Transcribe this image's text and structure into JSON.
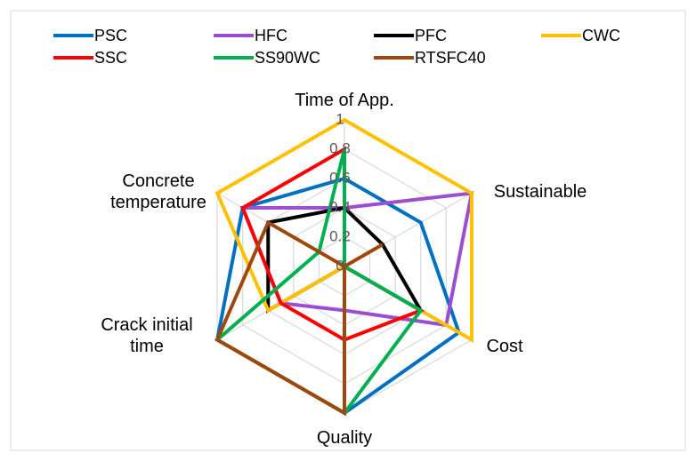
{
  "chart_data": {
    "type": "radar",
    "categories": [
      "Time of App.",
      "Sustainable",
      "Cost",
      "Quality",
      "Crack initial time",
      "Concrete temperature"
    ],
    "series": [
      {
        "name": "PSC",
        "color": "#0070c0",
        "values": [
          0.6,
          0.6,
          0.9,
          1,
          1,
          0.8
        ]
      },
      {
        "name": "HFC",
        "color": "#9b4fd0",
        "values": [
          0.4,
          1,
          0.8,
          0.3,
          0.5,
          0.8
        ]
      },
      {
        "name": "PFC",
        "color": "#000000",
        "values": [
          0.4,
          0.3,
          0.6,
          0,
          0.6,
          0.6
        ]
      },
      {
        "name": "CWC",
        "color": "#ffc000",
        "values": [
          1,
          1,
          1,
          0,
          0.6,
          1
        ]
      },
      {
        "name": "SSC",
        "color": "#ff0000",
        "values": [
          0.8,
          0,
          0.6,
          0.5,
          0.5,
          0.8
        ]
      },
      {
        "name": "SS90WC",
        "color": "#00b050",
        "values": [
          0.8,
          0,
          0.6,
          1,
          1,
          0.2
        ]
      },
      {
        "name": "RTSFC40",
        "color": "#a0480c",
        "values": [
          0,
          0.3,
          0,
          1,
          1,
          0.6
        ]
      }
    ],
    "ylim": [
      0,
      1
    ],
    "yticks": [
      0,
      0.2,
      0.4,
      0.6,
      0.8,
      1
    ],
    "grid": true,
    "legend": "top"
  }
}
